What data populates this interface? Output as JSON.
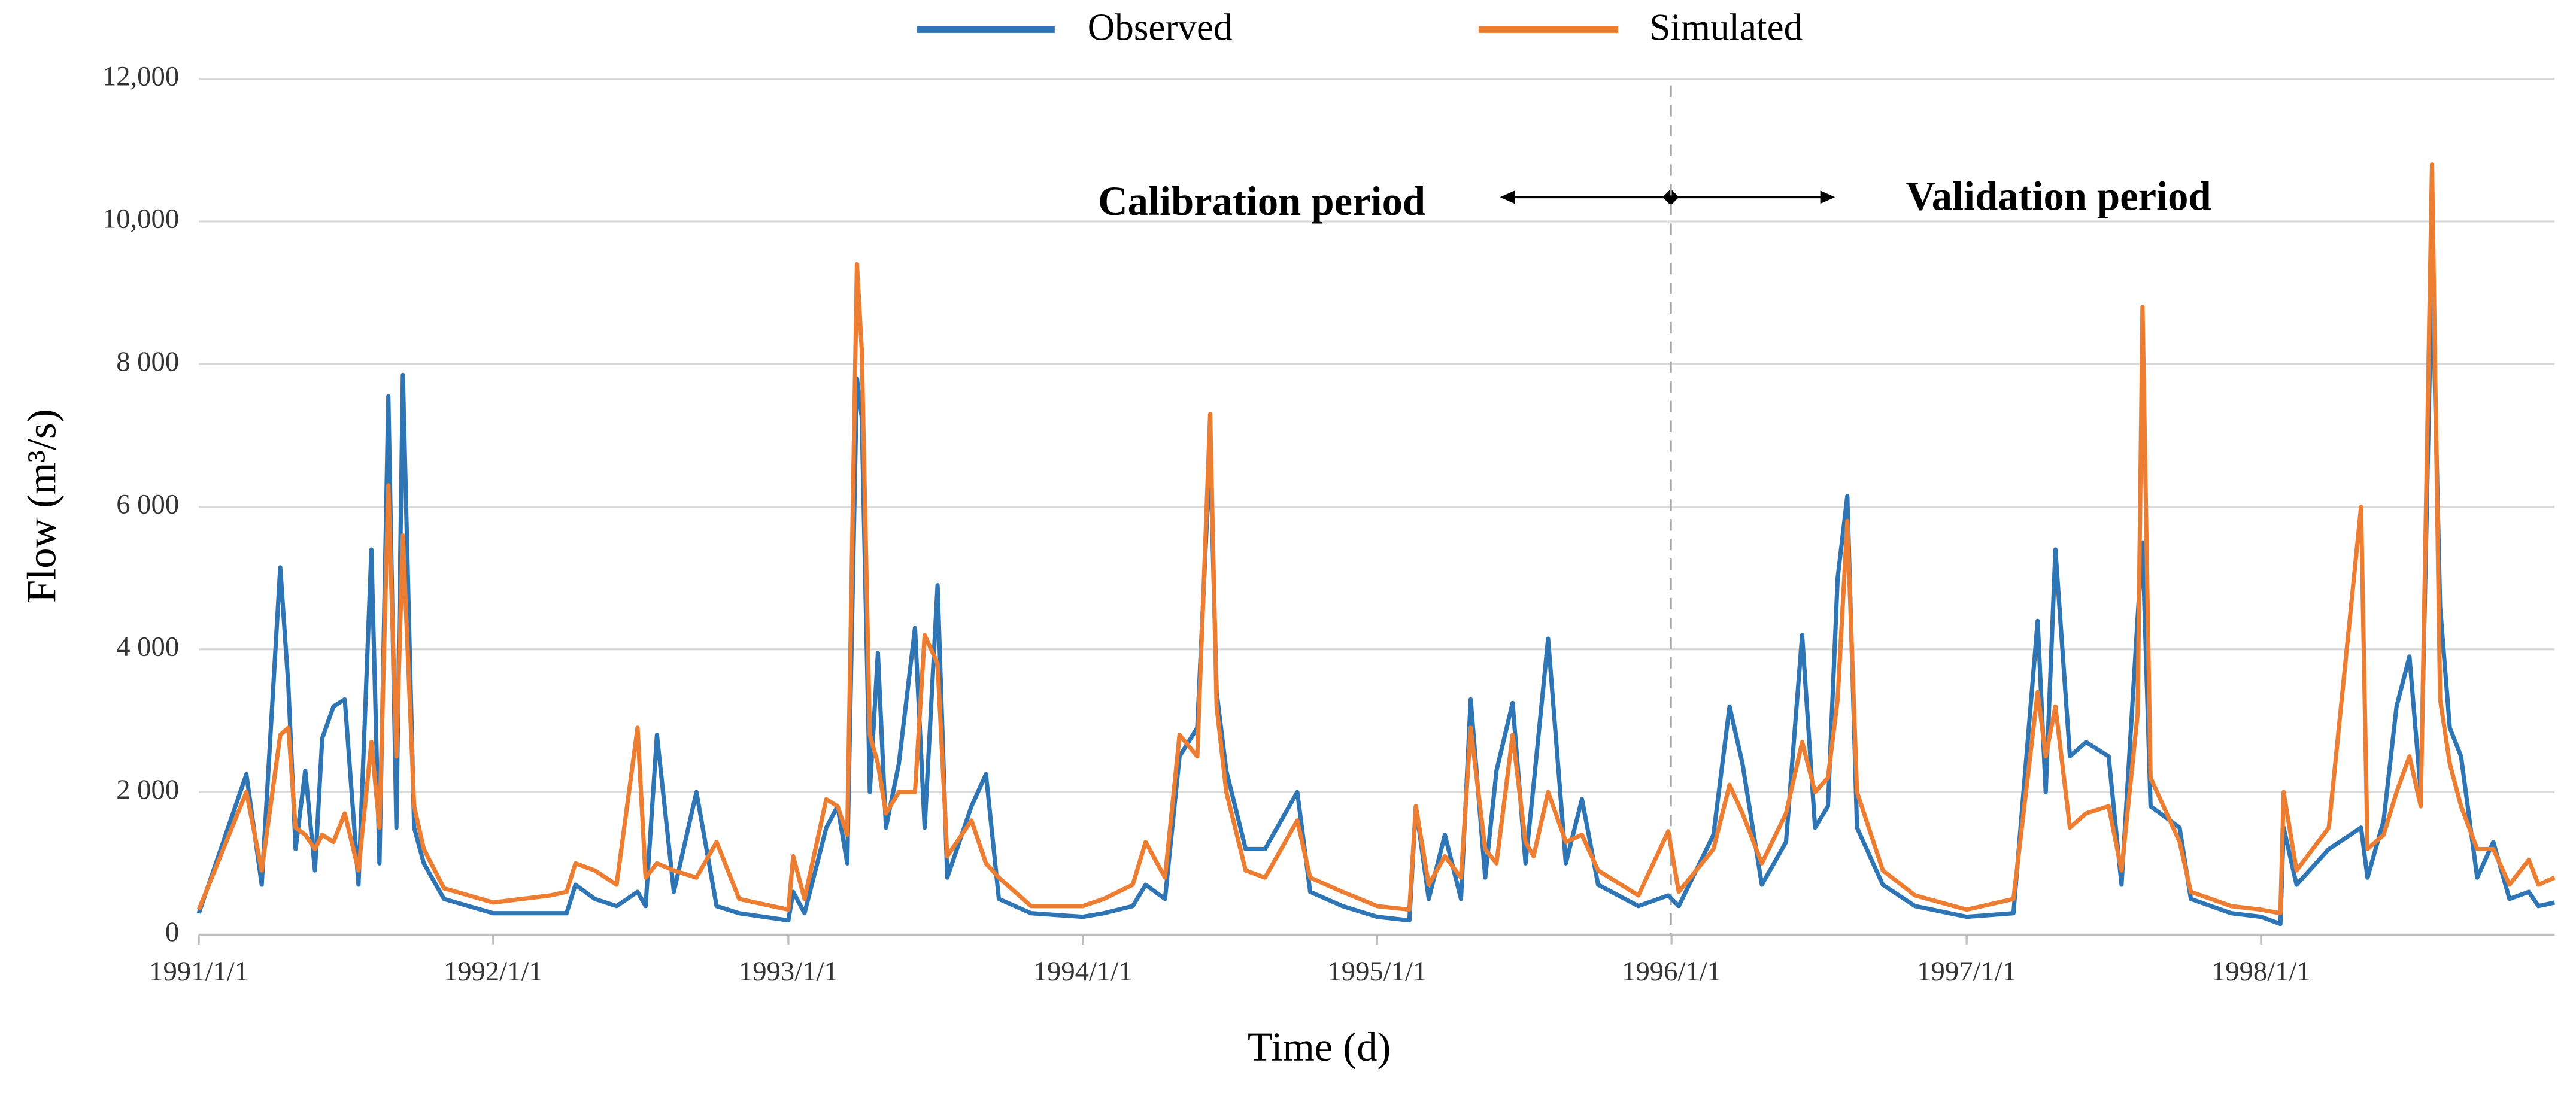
{
  "chart_data": {
    "type": "line",
    "x_label": "Time (d)",
    "y_label": "Flow (m³/s)",
    "annotations": [
      "Calibration period",
      "Validation period"
    ],
    "xlim": [
      "1991/1/1",
      "1998/12/31"
    ],
    "xticks": [
      "1991/1/1",
      "1992/1/1",
      "1993/1/1",
      "1994/1/1",
      "1995/1/1",
      "1996/1/1",
      "1997/1/1",
      "1998/1/1"
    ],
    "ylim": [
      0,
      12000
    ],
    "yticks": [
      0,
      {
        "value": 2000,
        "label": "2 000"
      },
      {
        "value": 4000,
        "label": "4 000"
      },
      {
        "value": 6000,
        "label": "6 000"
      },
      {
        "value": 8000,
        "label": "8 000"
      },
      {
        "value": 10000,
        "label": "10,000"
      },
      {
        "value": 12000,
        "label": "12,000"
      }
    ],
    "grid": true,
    "legend": "top",
    "x": [
      "1991/1/1",
      "1991/3/1",
      "1991/3/20",
      "1991/4/12",
      "1991/4/22",
      "1991/5/1",
      "1991/5/13",
      "1991/5/25",
      "1991/6/3",
      "1991/6/17",
      "1991/7/1",
      "1991/7/18",
      "1991/8/3",
      "1991/8/13",
      "1991/8/24",
      "1991/9/3",
      "1991/9/11",
      "1991/9/25",
      "1991/10/7",
      "1991/11/1",
      "1992/1/1",
      "1992/3/12",
      "1992/4/1",
      "1992/4/12",
      "1992/5/6",
      "1992/6/2",
      "1992/6/28",
      "1992/7/8",
      "1992/7/22",
      "1992/8/12",
      "1992/9/9",
      "1992/10/4",
      "1992/11/1",
      "1993/1/1",
      "1993/1/7",
      "1993/1/21",
      "1993/2/17",
      "1993/3/3",
      "1993/3/15",
      "1993/3/27",
      "1993/4/2",
      "1993/4/12",
      "1993/4/22",
      "1993/5/2",
      "1993/5/18",
      "1993/6/7",
      "1993/6/19",
      "1993/7/5",
      "1993/7/17",
      "1993/8/16",
      "1993/9/3",
      "1993/9/19",
      "1993/10/29",
      "1994/1/1",
      "1994/1/27",
      "1994/3/4",
      "1994/3/20",
      "1994/4/13",
      "1994/5/1",
      "1994/5/23",
      "1994/6/8",
      "1994/6/16",
      "1994/6/28",
      "1994/7/22",
      "1994/8/15",
      "1994/9/24",
      "1994/10/10",
      "1994/11/19",
      "1995/1/1",
      "1995/2/10",
      "1995/2/18",
      "1995/3/6",
      "1995/3/26",
      "1995/4/15",
      "1995/4/27",
      "1995/5/15",
      "1995/5/29",
      "1995/6/18",
      "1995/7/4",
      "1995/7/14",
      "1995/8/1",
      "1995/8/23",
      "1995/9/12",
      "1995/10/2",
      "1995/11/21",
      "1995/12/28",
      "1996/1/10",
      "1996/2/22",
      "1996/3/13",
      "1996/3/29",
      "1996/4/22",
      "1996/5/22",
      "1996/6/11",
      "1996/6/27",
      "1996/7/13",
      "1996/7/25",
      "1996/8/6",
      "1996/8/18",
      "1996/9/19",
      "1996/10/29",
      "1997/1/1",
      "1997/2/28",
      "1997/3/30",
      "1997/4/9",
      "1997/4/21",
      "1997/5/9",
      "1997/5/29",
      "1997/6/26",
      "1997/7/12",
      "1997/8/1",
      "1997/8/7",
      "1997/8/17",
      "1997/9/22",
      "1997/10/6",
      "1997/11/25",
      "1998/1/1",
      "1998/1/25",
      "1998/1/29",
      "1998/2/14",
      "1998/3/26",
      "1998/5/5",
      "1998/5/13",
      "1998/6/2",
      "1998/6/18",
      "1998/7/4",
      "1998/7/18",
      "1998/8/1",
      "1998/8/11",
      "1998/8/23",
      "1998/9/6",
      "1998/9/26",
      "1998/10/16",
      "1998/11/5",
      "1998/11/29",
      "1998/12/11",
      "1998/12/31"
    ],
    "series": [
      {
        "name": "Observed",
        "color": "#2e75b6",
        "values": [
          300,
          2250,
          700,
          5150,
          3500,
          1200,
          2300,
          900,
          2750,
          3200,
          3300,
          700,
          5400,
          1000,
          7550,
          1500,
          7850,
          1500,
          1000,
          500,
          300,
          300,
          300,
          700,
          500,
          400,
          600,
          400,
          2800,
          600,
          2000,
          400,
          300,
          200,
          600,
          300,
          1500,
          1800,
          1000,
          7800,
          7250,
          2000,
          3950,
          1500,
          2400,
          4300,
          1500,
          4900,
          800,
          1800,
          2250,
          500,
          300,
          250,
          300,
          400,
          700,
          500,
          2500,
          2900,
          6800,
          3400,
          2300,
          1200,
          1200,
          2000,
          600,
          400,
          250,
          200,
          1800,
          500,
          1400,
          500,
          3300,
          800,
          2300,
          3250,
          1000,
          2100,
          4150,
          1000,
          1900,
          700,
          400,
          550,
          400,
          1400,
          3200,
          2400,
          700,
          1300,
          4200,
          1500,
          1800,
          5000,
          6150,
          1500,
          700,
          400,
          250,
          300,
          4400,
          2000,
          5400,
          2500,
          2700,
          2500,
          700,
          4450,
          5500,
          1800,
          1500,
          500,
          300,
          250,
          150,
          1500,
          700,
          1200,
          1500,
          800,
          1600,
          3200,
          3900,
          2000,
          9450,
          4600,
          2900,
          2500,
          800,
          1300,
          500,
          600,
          400,
          450
        ]
      },
      {
        "name": "Simulated",
        "color": "#ed7d31",
        "values": [
          350,
          2000,
          900,
          2800,
          2900,
          1500,
          1400,
          1200,
          1400,
          1300,
          1700,
          900,
          2700,
          1500,
          6300,
          2500,
          5600,
          1800,
          1200,
          650,
          450,
          550,
          600,
          1000,
          900,
          700,
          2900,
          800,
          1000,
          900,
          800,
          1300,
          500,
          350,
          1100,
          500,
          1900,
          1800,
          1400,
          9400,
          8200,
          2800,
          2400,
          1700,
          2000,
          2000,
          4200,
          3800,
          1100,
          1600,
          1000,
          800,
          400,
          400,
          500,
          700,
          1300,
          800,
          2800,
          2500,
          7300,
          3200,
          2000,
          900,
          800,
          1600,
          800,
          600,
          400,
          350,
          1800,
          700,
          1100,
          800,
          2900,
          1200,
          1000,
          2800,
          1300,
          1100,
          2000,
          1300,
          1400,
          900,
          550,
          1450,
          600,
          1200,
          2100,
          1700,
          1000,
          1700,
          2700,
          2000,
          2200,
          3300,
          5800,
          2000,
          900,
          550,
          350,
          500,
          3400,
          2500,
          3200,
          1500,
          1700,
          1800,
          900,
          3100,
          8800,
          2200,
          1300,
          600,
          400,
          350,
          300,
          2000,
          900,
          1500,
          6000,
          1200,
          1400,
          2000,
          2500,
          1800,
          10800,
          3300,
          2400,
          1800,
          1200,
          1200,
          700,
          1050,
          700,
          800
        ]
      }
    ]
  }
}
